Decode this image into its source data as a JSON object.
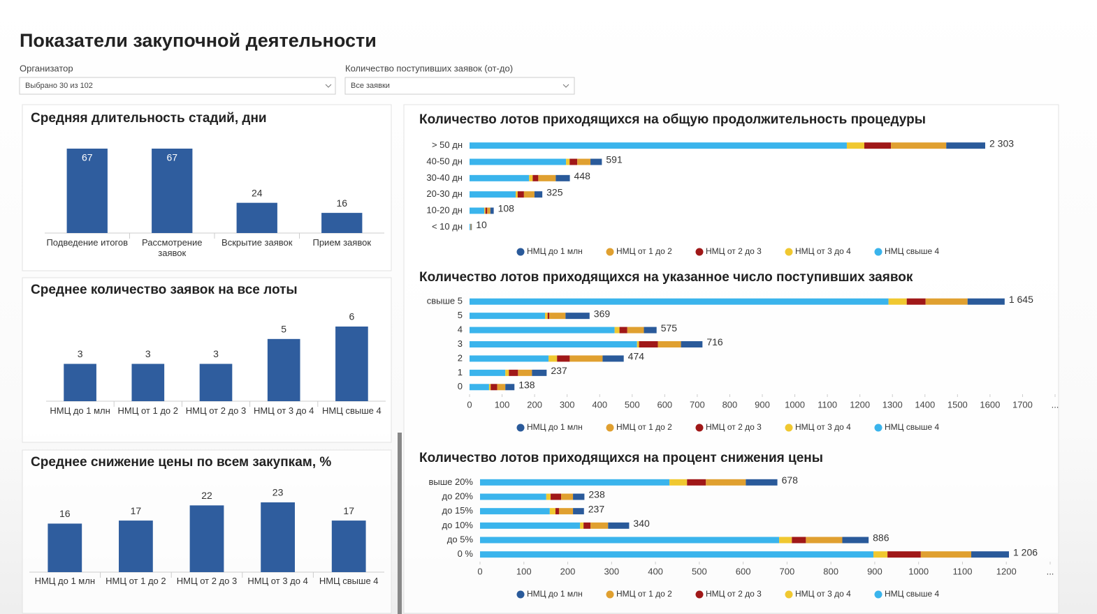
{
  "header": {
    "title": "Показатели закупочной деятельности"
  },
  "filters": [
    {
      "label": "Организатор",
      "value": "Выбрано 30 из 102"
    },
    {
      "label": "Количество поступивших заявок (от-до)",
      "value": "Все заявки"
    }
  ],
  "chart_data": [
    {
      "type": "bar",
      "title": "Средняя длительность стадий, дни",
      "categories": [
        "Подведение итогов",
        "Рассмотрение заявок",
        "Вскрытие заявок",
        "Прием заявок"
      ],
      "values": [
        67,
        67,
        24,
        16
      ],
      "color": "#2f5d9e"
    },
    {
      "type": "bar",
      "title": "Среднее количество заявок на все лоты",
      "categories": [
        "НМЦ до 1 млн",
        "НМЦ от 1 до 2",
        "НМЦ от 2 до 3",
        "НМЦ от 3 до 4",
        "НМЦ свыше 4"
      ],
      "values": [
        3,
        3,
        3,
        5,
        6
      ],
      "color": "#2f5d9e"
    },
    {
      "type": "bar",
      "title": "Среднее снижение цены по всем закупкам, %",
      "categories": [
        "НМЦ до 1 млн",
        "НМЦ от 1 до 2",
        "НМЦ от 2 до 3",
        "НМЦ от 3 до 4",
        "НМЦ свыше 4"
      ],
      "values": [
        16,
        17,
        22,
        23,
        17
      ],
      "color": "#2f5d9e"
    },
    {
      "type": "hbar",
      "title": "Количество лотов приходящихся на общую продолжительность процедуры",
      "categories": [
        "> 50 дн",
        "40-50 дн",
        "30-40 дн",
        "20-30 дн",
        "10-20 дн",
        "< 10 дн"
      ],
      "series": [
        {
          "name": "НМЦ до 1 млн",
          "color": "#2a5a9a",
          "values": [
            174,
            51,
            63,
            35,
            15,
            2
          ]
        },
        {
          "name": "НМЦ от 1 до 2",
          "color": "#e0a030",
          "values": [
            247,
            59,
            78,
            47,
            14,
            2
          ]
        },
        {
          "name": "НМЦ от 2 до 3",
          "color": "#a01818",
          "values": [
            119,
            34,
            25,
            28,
            8,
            1
          ]
        },
        {
          "name": "НМЦ от 3 до 4",
          "color": "#f0c830",
          "values": [
            78,
            16,
            16,
            9,
            5,
            1
          ]
        },
        {
          "name": "НМЦ свыше 4",
          "color": "#3ab4ec",
          "values": [
            1685,
            431,
            266,
            206,
            66,
            4
          ]
        }
      ],
      "totals": [
        2303,
        591,
        448,
        325,
        108,
        10
      ],
      "total_labels": [
        "2 303",
        "591",
        "448",
        "325",
        "108",
        "10"
      ]
    },
    {
      "type": "hbar",
      "title": "Количество лотов приходящихся на указанное число поступивших заявок",
      "categories": [
        "свыше 5",
        "5",
        "4",
        "3",
        "2",
        "1",
        "0"
      ],
      "series": [
        {
          "name": "НМЦ до 1 млн",
          "color": "#2a5a9a",
          "values": [
            114,
            74,
            39,
            66,
            65,
            45,
            28
          ]
        },
        {
          "name": "НМЦ от 1 до 2",
          "color": "#e0a030",
          "values": [
            129,
            50,
            51,
            71,
            101,
            43,
            25
          ]
        },
        {
          "name": "НМЦ от 2 до 3",
          "color": "#a01818",
          "values": [
            58,
            5,
            24,
            58,
            39,
            28,
            20
          ]
        },
        {
          "name": "НМЦ от 3 до 4",
          "color": "#f0c830",
          "values": [
            56,
            8,
            15,
            6,
            26,
            11,
            5
          ]
        },
        {
          "name": "НМЦ свыше 4",
          "color": "#3ab4ec",
          "values": [
            1288,
            232,
            446,
            515,
            243,
            110,
            60
          ]
        }
      ],
      "totals": [
        1645,
        369,
        575,
        716,
        474,
        237,
        138
      ],
      "total_labels": [
        "1 645",
        "369",
        "575",
        "716",
        "474",
        "237",
        "138"
      ],
      "xlim": [
        0,
        1800
      ],
      "xticks": [
        0,
        100,
        200,
        300,
        400,
        500,
        600,
        700,
        800,
        900,
        1000,
        1100,
        1200,
        1300,
        1400,
        1500,
        1600,
        1700,
        {
          "value": 1800,
          "label": "..."
        }
      ]
    },
    {
      "type": "hbar",
      "title": "Количество лотов приходящихся на процент снижения цены",
      "categories": [
        "выше 20%",
        "до 20%",
        "до 15%",
        "до 10%",
        "до 5%",
        "0 %"
      ],
      "series": [
        {
          "name": "НМЦ до 1 млн",
          "color": "#2a5a9a",
          "values": [
            72,
            26,
            25,
            48,
            60,
            86
          ]
        },
        {
          "name": "НМЦ от 1 до 2",
          "color": "#e0a030",
          "values": [
            91,
            27,
            32,
            40,
            83,
            115
          ]
        },
        {
          "name": "НМЦ от 2 до 3",
          "color": "#a01818",
          "values": [
            43,
            24,
            8,
            16,
            32,
            76
          ]
        },
        {
          "name": "НМЦ от 3 до 4",
          "color": "#f0c830",
          "values": [
            40,
            10,
            13,
            8,
            29,
            32
          ]
        },
        {
          "name": "НМЦ свыше 4",
          "color": "#3ab4ec",
          "values": [
            432,
            151,
            159,
            228,
            682,
            897
          ]
        }
      ],
      "totals": [
        678,
        238,
        237,
        340,
        886,
        1206
      ],
      "total_labels": [
        "678",
        "238",
        "237",
        "340",
        "886",
        "1 206"
      ],
      "xlim": [
        0,
        1300
      ],
      "xticks": [
        0,
        100,
        200,
        300,
        400,
        500,
        600,
        700,
        800,
        900,
        1000,
        1100,
        1200,
        {
          "value": 1300,
          "label": "..."
        }
      ]
    }
  ]
}
